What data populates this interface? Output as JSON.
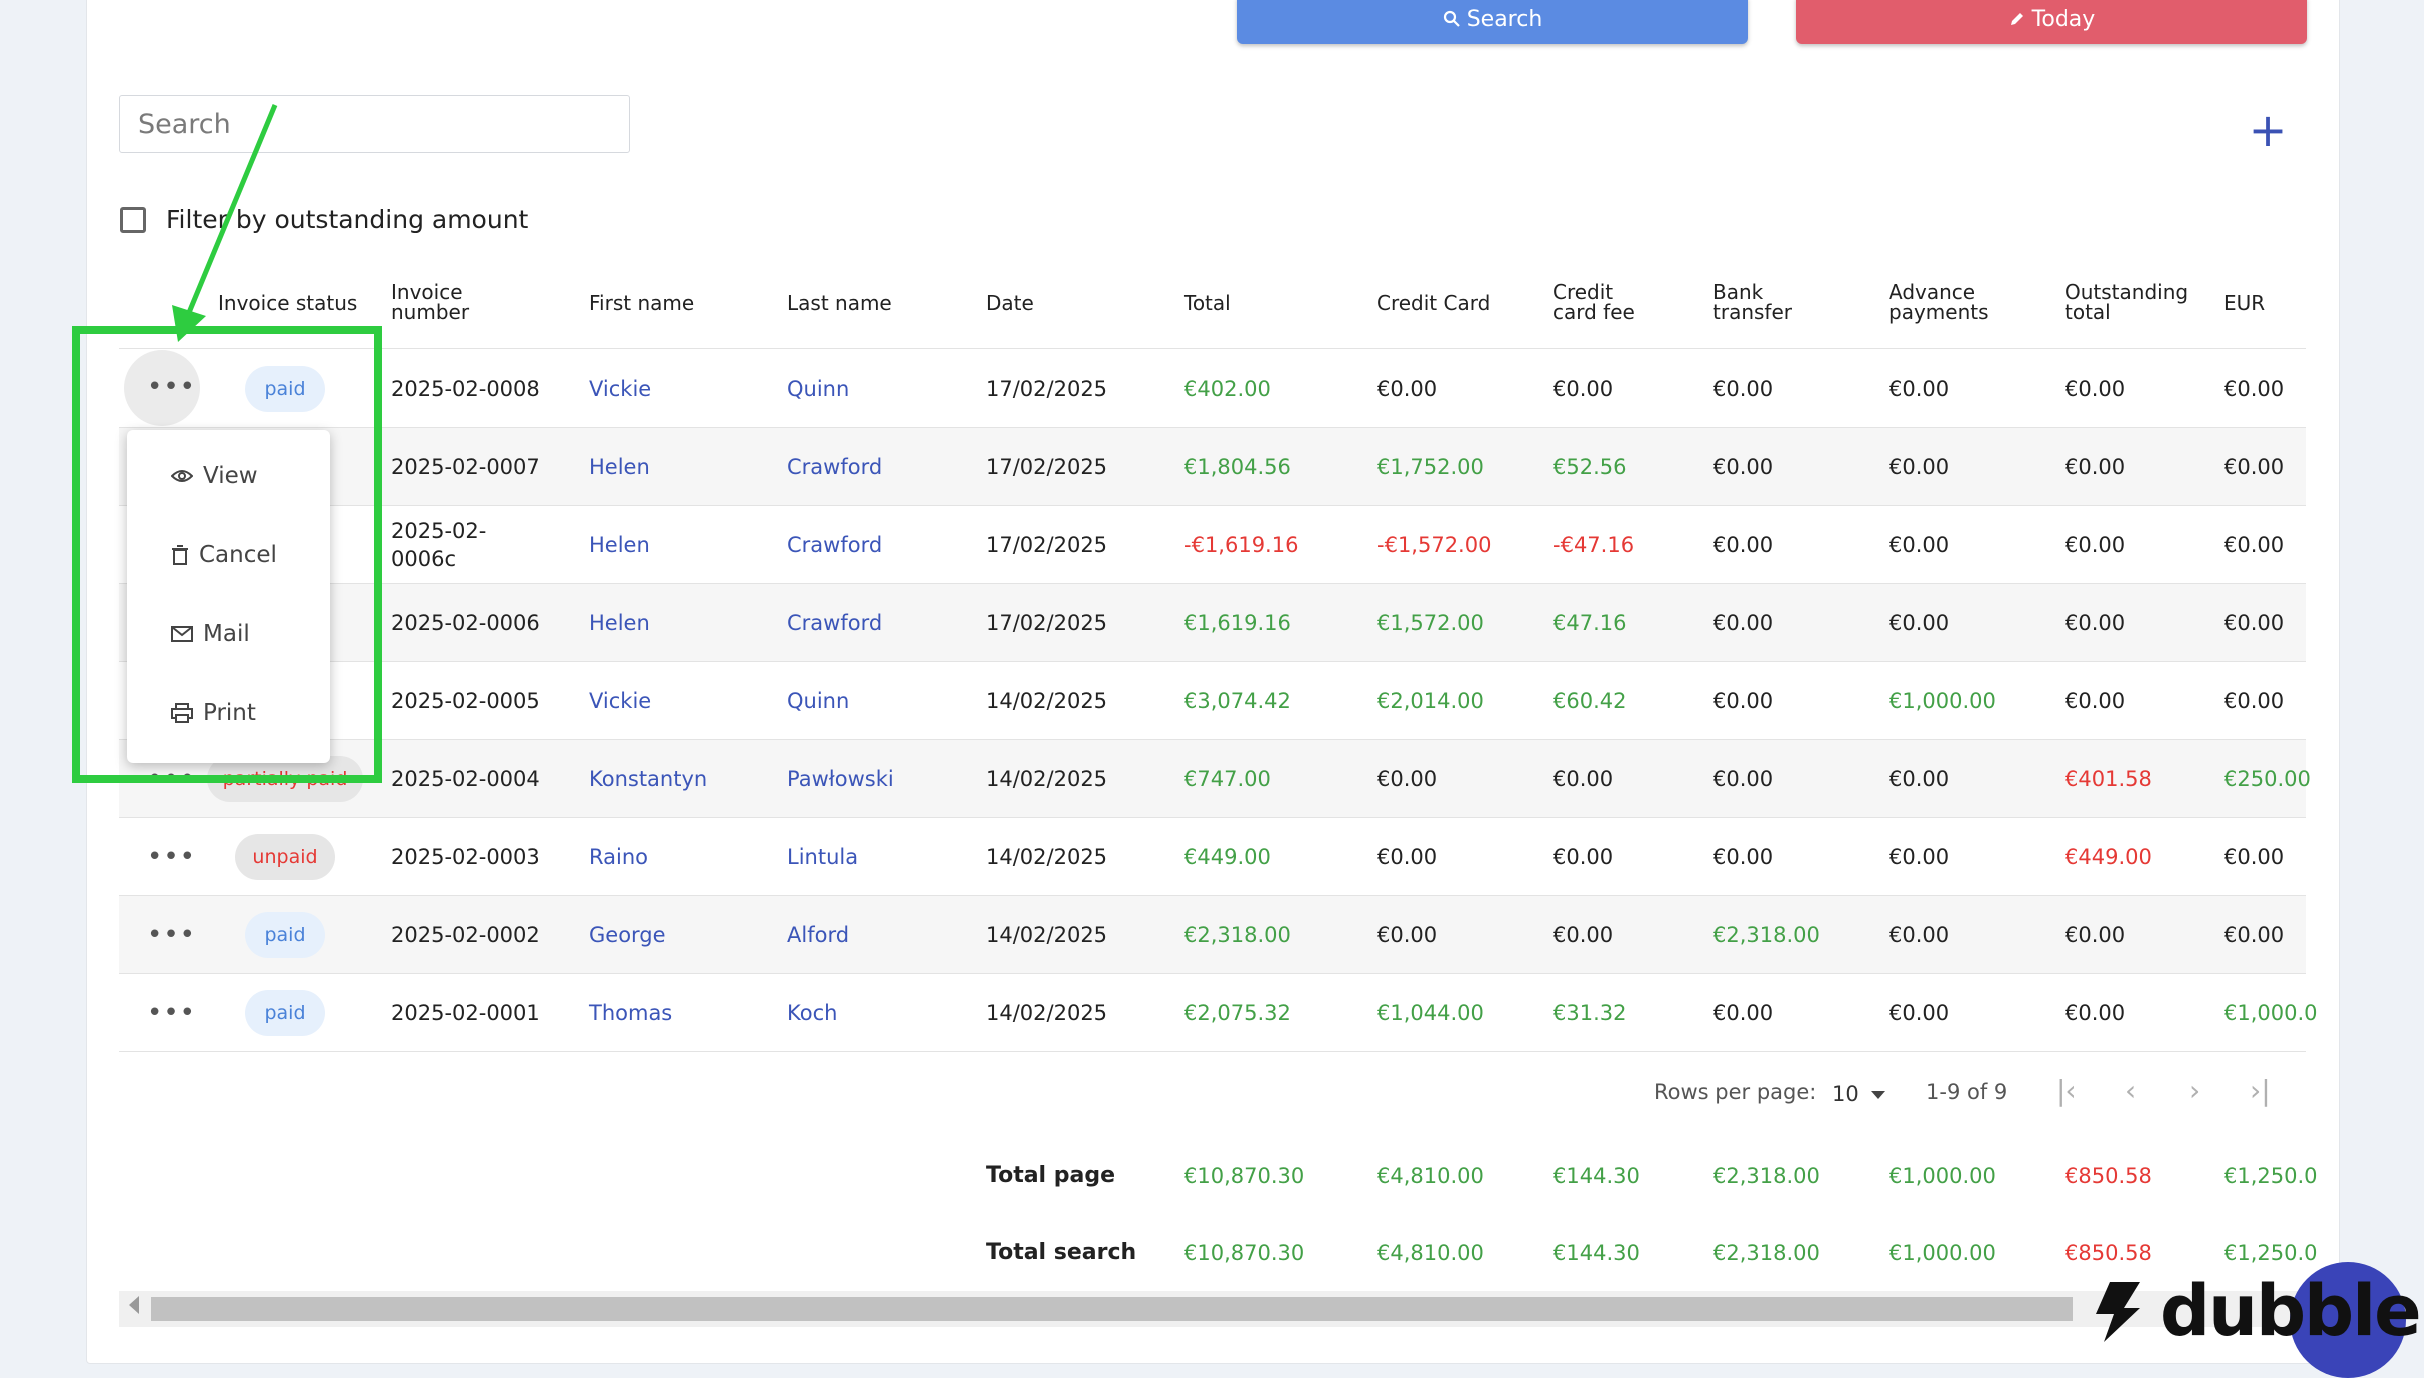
{
  "toolbar": {
    "search_label": "Search",
    "today_label": "Today"
  },
  "search": {
    "placeholder": "Search"
  },
  "filter": {
    "label": "Filter by outstanding amount",
    "checked": false
  },
  "columns": {
    "status": "Invoice status",
    "number": [
      "Invoice",
      "number"
    ],
    "first": "First name",
    "last": "Last name",
    "date": "Date",
    "total": "Total",
    "cc": "Credit Card",
    "ccfee": [
      "Credit",
      "card fee"
    ],
    "bank": [
      "Bank",
      "transfer"
    ],
    "advance": [
      "Advance",
      "payments"
    ],
    "outstanding": [
      "Outstanding",
      "total"
    ],
    "eur": "EUR"
  },
  "rows": [
    {
      "status": "paid",
      "number": "2025-02-0008",
      "first": "Vickie",
      "last": "Quinn",
      "date": "17/02/2025",
      "total": "€402.00",
      "cc": "€0.00",
      "ccfee": "€0.00",
      "bank": "€0.00",
      "advance": "€0.00",
      "outstanding": "€0.00",
      "eur": "€0.00"
    },
    {
      "status": "",
      "number": "2025-02-0007",
      "first": "Helen",
      "last": "Crawford",
      "date": "17/02/2025",
      "total": "€1,804.56",
      "cc": "€1,752.00",
      "ccfee": "€52.56",
      "bank": "€0.00",
      "advance": "€0.00",
      "outstanding": "€0.00",
      "eur": "€0.00"
    },
    {
      "status": "",
      "number": [
        "2025-02-",
        "0006c"
      ],
      "first": "Helen",
      "last": "Crawford",
      "date": "17/02/2025",
      "total": "-€1,619.16",
      "cc": "-€1,572.00",
      "ccfee": "-€47.16",
      "bank": "€0.00",
      "advance": "€0.00",
      "outstanding": "€0.00",
      "eur": "€0.00"
    },
    {
      "status": "",
      "number": "2025-02-0006",
      "first": "Helen",
      "last": "Crawford",
      "date": "17/02/2025",
      "total": "€1,619.16",
      "cc": "€1,572.00",
      "ccfee": "€47.16",
      "bank": "€0.00",
      "advance": "€0.00",
      "outstanding": "€0.00",
      "eur": "€0.00"
    },
    {
      "status": "",
      "number": "2025-02-0005",
      "first": "Vickie",
      "last": "Quinn",
      "date": "14/02/2025",
      "total": "€3,074.42",
      "cc": "€2,014.00",
      "ccfee": "€60.42",
      "bank": "€0.00",
      "advance": "€1,000.00",
      "outstanding": "€0.00",
      "eur": "€0.00"
    },
    {
      "status": "partially paid",
      "number": "2025-02-0004",
      "first": "Konstantyn",
      "last": "Pawłowski",
      "date": "14/02/2025",
      "total": "€747.00",
      "cc": "€0.00",
      "ccfee": "€0.00",
      "bank": "€0.00",
      "advance": "€0.00",
      "outstanding": "€401.58",
      "eur": "€250.00"
    },
    {
      "status": "unpaid",
      "number": "2025-02-0003",
      "first": "Raino",
      "last": "Lintula",
      "date": "14/02/2025",
      "total": "€449.00",
      "cc": "€0.00",
      "ccfee": "€0.00",
      "bank": "€0.00",
      "advance": "€0.00",
      "outstanding": "€449.00",
      "eur": "€0.00"
    },
    {
      "status": "paid",
      "number": "2025-02-0002",
      "first": "George",
      "last": "Alford",
      "date": "14/02/2025",
      "total": "€2,318.00",
      "cc": "€0.00",
      "ccfee": "€0.00",
      "bank": "€2,318.00",
      "advance": "€0.00",
      "outstanding": "€0.00",
      "eur": "€0.00"
    },
    {
      "status": "paid",
      "number": "2025-02-0001",
      "first": "Thomas",
      "last": "Koch",
      "date": "14/02/2025",
      "total": "€2,075.32",
      "cc": "€1,044.00",
      "ccfee": "€31.32",
      "bank": "€0.00",
      "advance": "€0.00",
      "outstanding": "€0.00",
      "eur": "€1,000.0"
    }
  ],
  "menu": {
    "view": "View",
    "cancel": "Cancel",
    "mail": "Mail",
    "print": "Print"
  },
  "pagination": {
    "rows_label": "Rows per page:",
    "rows_value": "10",
    "range": "1-9 of 9"
  },
  "totals": {
    "page": {
      "label": "Total page",
      "total": "€10,870.30",
      "cc": "€4,810.00",
      "ccfee": "€144.30",
      "bank": "€2,318.00",
      "advance": "€1,000.00",
      "outstanding": "€850.58",
      "eur": "€1,250.0"
    },
    "search": {
      "label": "Total search",
      "total": "€10,870.30",
      "cc": "€4,810.00",
      "ccfee": "€144.30",
      "bank": "€2,318.00",
      "advance": "€1,000.00",
      "outstanding": "€850.58",
      "eur": "€1,250.0"
    }
  },
  "branding": {
    "name": "dubble"
  },
  "colors": {
    "search_button": "#5b8be2",
    "today_button": "#e15d6c",
    "positive": "#43a047",
    "negative": "#e53935",
    "link": "#3b55b8",
    "highlight": "#2ecc40"
  },
  "icons": [
    "search-icon",
    "pencil-icon",
    "plus-icon",
    "more-dots-icon",
    "eye-icon",
    "trash-icon",
    "mail-icon",
    "printer-icon",
    "first-page-icon",
    "prev-page-icon",
    "next-page-icon",
    "last-page-icon",
    "dropdown-caret-icon"
  ]
}
